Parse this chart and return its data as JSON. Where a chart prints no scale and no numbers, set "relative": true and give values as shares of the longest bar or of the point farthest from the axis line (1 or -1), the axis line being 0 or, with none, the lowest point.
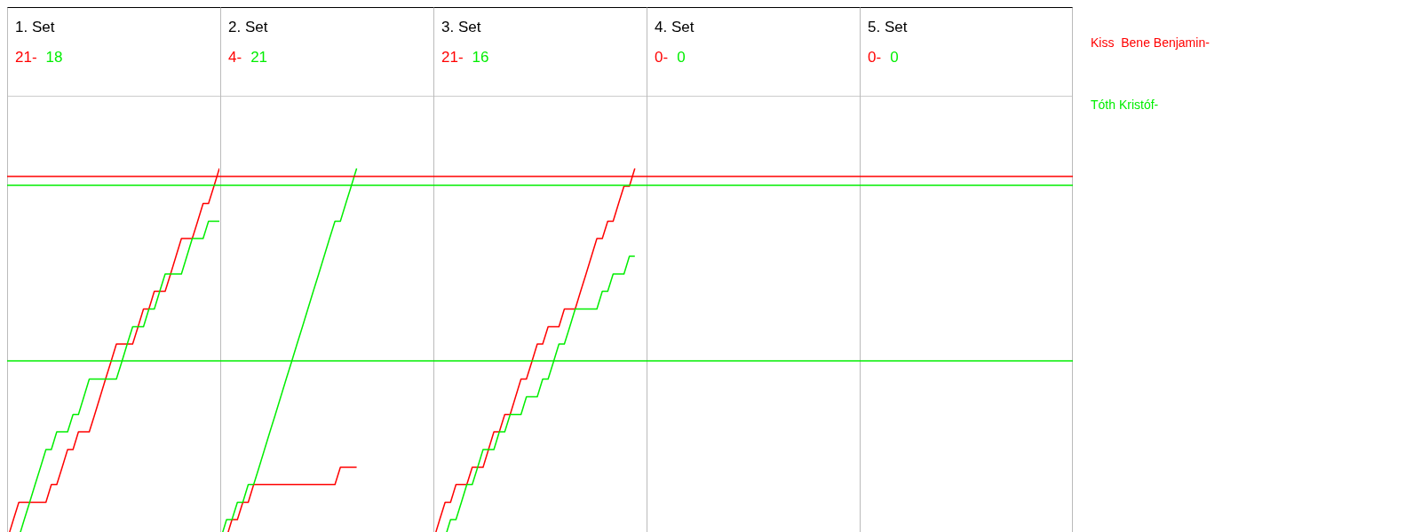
{
  "chart_data": [
    {
      "type": "line",
      "title": "1. Set",
      "annotations": [
        "21-",
        "18"
      ],
      "relative": true,
      "legend": "right",
      "categories": [
        null,
        null,
        null,
        null,
        null,
        null,
        null,
        null,
        null,
        null,
        null,
        null,
        null,
        null,
        null,
        null,
        null,
        null,
        null,
        null,
        null,
        null,
        null,
        null,
        null,
        null,
        null,
        null,
        null,
        null,
        null,
        null,
        null,
        null,
        null,
        null,
        null,
        null,
        null,
        null
      ],
      "series": [
        {
          "name": "Kiss  Bene Benjamin-",
          "color": "#ff0000",
          "values": [
            0,
            0.048,
            0.095,
            0.095,
            0.095,
            0.095,
            0.095,
            0.095,
            0.143,
            0.143,
            0.19,
            0.238,
            0.238,
            0.286,
            0.286,
            0.286,
            0.333,
            0.381,
            0.429,
            0.476,
            0.524,
            0.524,
            0.524,
            0.524,
            0.571,
            0.619,
            0.619,
            0.667,
            0.667,
            0.667,
            0.714,
            0.762,
            0.81,
            0.81,
            0.81,
            0.857,
            0.905,
            0.905,
            0.952,
            1
          ]
        },
        {
          "name": "Tóth Kristóf-",
          "color": "#00ee00",
          "values": [
            null,
            null,
            0,
            0.048,
            0.095,
            0.143,
            0.19,
            0.238,
            0.238,
            0.286,
            0.286,
            0.286,
            0.333,
            0.333,
            0.381,
            0.429,
            0.429,
            0.429,
            0.429,
            0.429,
            0.429,
            0.476,
            0.524,
            0.571,
            0.571,
            0.571,
            0.619,
            0.619,
            0.667,
            0.714,
            0.714,
            0.714,
            0.714,
            0.762,
            0.81,
            0.81,
            0.81,
            0.857,
            0.857,
            0.857
          ]
        }
      ],
      "ref_lines": [
        {
          "axis": "y",
          "value": 0.976,
          "color": "#ff0000"
        },
        {
          "axis": "y",
          "value": 0.952,
          "color": "#00ee00"
        },
        {
          "axis": "y",
          "value": 0.476,
          "color": "#00ee00"
        }
      ]
    },
    {
      "type": "line",
      "title": "2. Set",
      "annotations": [
        "4-",
        "21"
      ],
      "relative": true,
      "categories": [
        null,
        null,
        null,
        null,
        null,
        null,
        null,
        null,
        null,
        null,
        null,
        null,
        null,
        null,
        null,
        null,
        null,
        null,
        null,
        null,
        null,
        null,
        null,
        null,
        null,
        null
      ],
      "series": [
        {
          "color": "#ff0000",
          "values": [
            0,
            0,
            0.048,
            0.048,
            0.095,
            0.095,
            0.143,
            0.143,
            0.143,
            0.143,
            0.143,
            0.143,
            0.143,
            0.143,
            0.143,
            0.143,
            0.143,
            0.143,
            0.143,
            0.143,
            0.143,
            0.143,
            0.19,
            0.19,
            0.19,
            0.19
          ]
        },
        {
          "color": "#00ee00",
          "values": [
            0,
            0.048,
            0.048,
            0.095,
            0.095,
            0.143,
            0.143,
            0.19,
            0.238,
            0.286,
            0.333,
            0.381,
            0.429,
            0.476,
            0.524,
            0.571,
            0.619,
            0.667,
            0.714,
            0.762,
            0.81,
            0.857,
            0.857,
            0.905,
            0.952,
            1
          ]
        }
      ]
    },
    {
      "type": "line",
      "title": "3. Set",
      "annotations": [
        "21-",
        "16"
      ],
      "relative": true,
      "categories": [
        null,
        null,
        null,
        null,
        null,
        null,
        null,
        null,
        null,
        null,
        null,
        null,
        null,
        null,
        null,
        null,
        null,
        null,
        null,
        null,
        null,
        null,
        null,
        null,
        null,
        null,
        null,
        null,
        null,
        null,
        null,
        null,
        null,
        null,
        null,
        null,
        null,
        null
      ],
      "series": [
        {
          "color": "#ff0000",
          "values": [
            0,
            0.048,
            0.095,
            0.095,
            0.143,
            0.143,
            0.143,
            0.19,
            0.19,
            0.19,
            0.238,
            0.286,
            0.286,
            0.333,
            0.333,
            0.381,
            0.429,
            0.429,
            0.476,
            0.524,
            0.524,
            0.571,
            0.571,
            0.571,
            0.619,
            0.619,
            0.619,
            0.667,
            0.714,
            0.762,
            0.81,
            0.81,
            0.857,
            0.857,
            0.905,
            0.952,
            0.952,
            1
          ]
        },
        {
          "color": "#00ee00",
          "values": [
            null,
            null,
            0,
            0.048,
            0.048,
            0.095,
            0.143,
            0.143,
            0.19,
            0.238,
            0.238,
            0.238,
            0.286,
            0.286,
            0.333,
            0.333,
            0.333,
            0.381,
            0.381,
            0.381,
            0.429,
            0.429,
            0.476,
            0.524,
            0.524,
            0.571,
            0.619,
            0.619,
            0.619,
            0.619,
            0.619,
            0.667,
            0.667,
            0.714,
            0.714,
            0.714,
            0.762,
            0.762
          ]
        }
      ]
    },
    {
      "type": "other",
      "title": "4. Set",
      "annotations": [
        "0-",
        "0"
      ]
    },
    {
      "type": "other",
      "title": "5. Set",
      "annotations": [
        "0-",
        "0"
      ]
    }
  ]
}
